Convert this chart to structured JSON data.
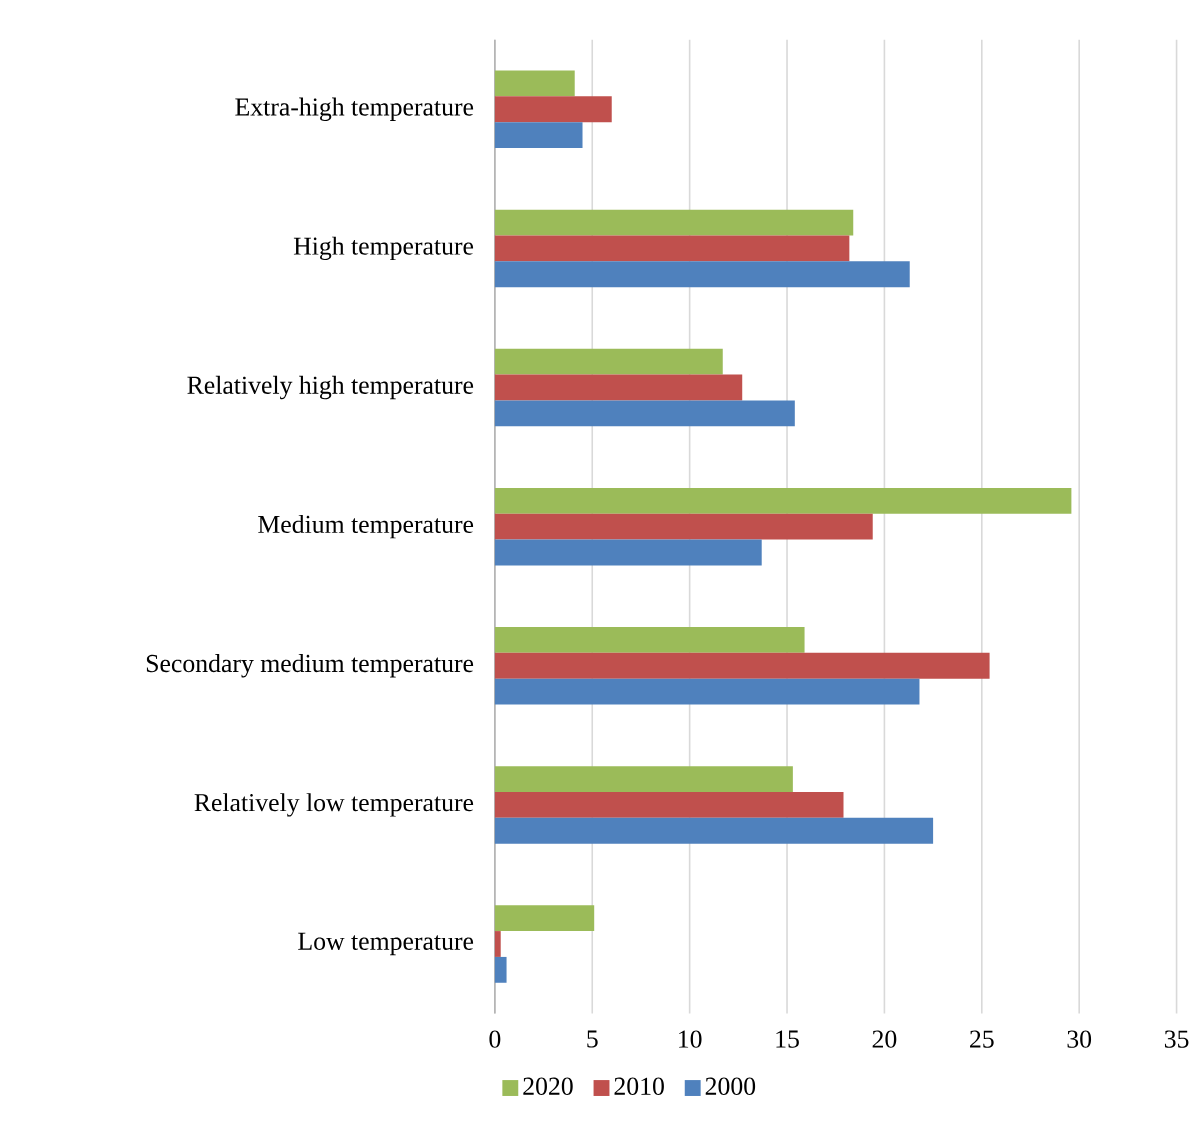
{
  "chart_data": {
    "type": "bar",
    "orientation": "horizontal",
    "categories": [
      "Extra-high temperature",
      "High temperature",
      "Relatively high temperature",
      "Medium temperature",
      "Secondary medium temperature",
      "Relatively low temperature",
      "Low temperature"
    ],
    "series": [
      {
        "name": "2020",
        "color": "#9bbb59",
        "values": [
          4.1,
          18.4,
          11.7,
          29.6,
          15.9,
          15.3,
          5.1
        ]
      },
      {
        "name": "2010",
        "color": "#c0504d",
        "values": [
          6.0,
          18.2,
          12.7,
          19.4,
          25.4,
          17.9,
          0.3
        ]
      },
      {
        "name": "2000",
        "color": "#4f81bd",
        "values": [
          4.5,
          21.3,
          15.4,
          13.7,
          21.8,
          22.5,
          0.6
        ]
      }
    ],
    "xlim": [
      0,
      35
    ],
    "xticks": [
      0,
      5,
      10,
      15,
      20,
      25,
      30,
      35
    ],
    "grid": "x",
    "legend": "bottom"
  }
}
